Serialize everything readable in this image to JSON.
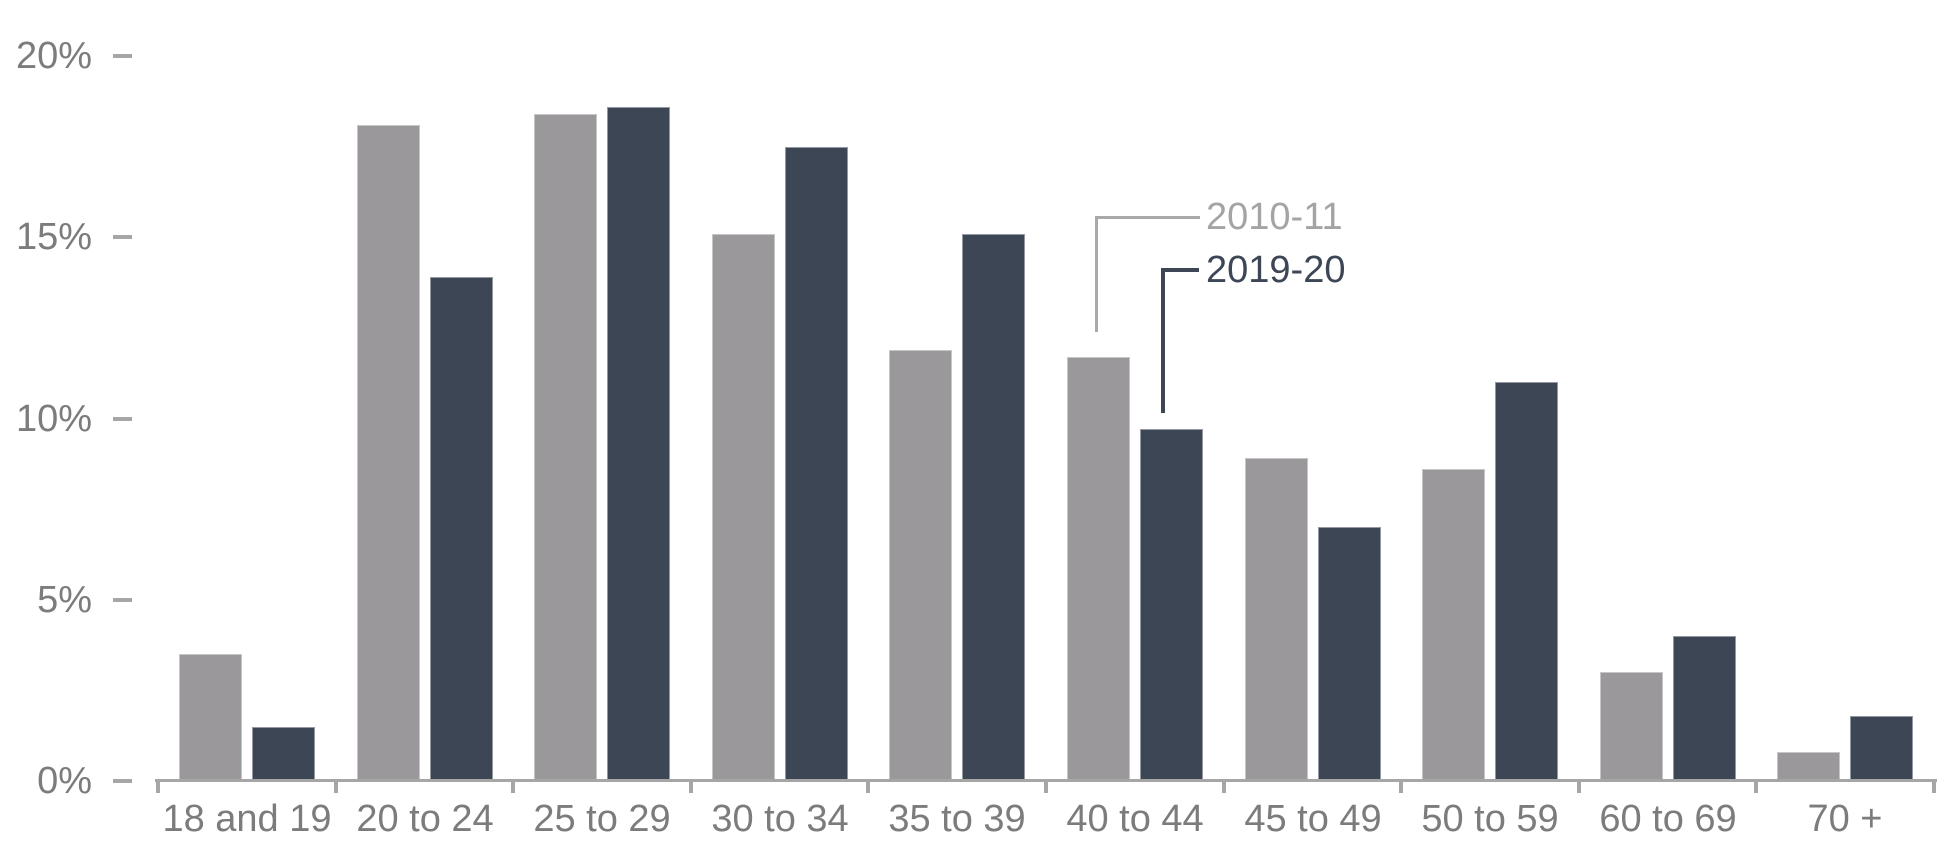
{
  "chart_data": {
    "type": "bar",
    "title": "",
    "xlabel": "",
    "ylabel": "",
    "categories": [
      "18 and 19",
      "20 to 24",
      "25 to 29",
      "30 to 34",
      "35 to 39",
      "40 to 44",
      "45 to 49",
      "50 to 59",
      "60 to 69",
      "70 +"
    ],
    "series": [
      {
        "name": "2010-11",
        "color": "#9a989a",
        "values": [
          3.5,
          18.1,
          18.4,
          15.1,
          11.9,
          11.7,
          8.9,
          8.6,
          3.0,
          0.8
        ]
      },
      {
        "name": "2019-20",
        "color": "#3c4654",
        "values": [
          1.5,
          13.9,
          18.6,
          17.5,
          15.1,
          9.7,
          7.0,
          11.0,
          4.0,
          1.8
        ]
      }
    ],
    "ylim": [
      0,
      20
    ],
    "ytick_values": [
      0,
      5,
      10,
      15,
      20
    ],
    "ytick_labels": [
      "0%",
      "5%",
      "10%",
      "15%",
      "20%"
    ],
    "grid": false,
    "legend_position": "callout labels with elbow leader lines pointing to the 40 to 44 bars",
    "axis_color": "#a6a6a6",
    "label_color": "#7c7c7c",
    "background_color": "#ffffff"
  }
}
